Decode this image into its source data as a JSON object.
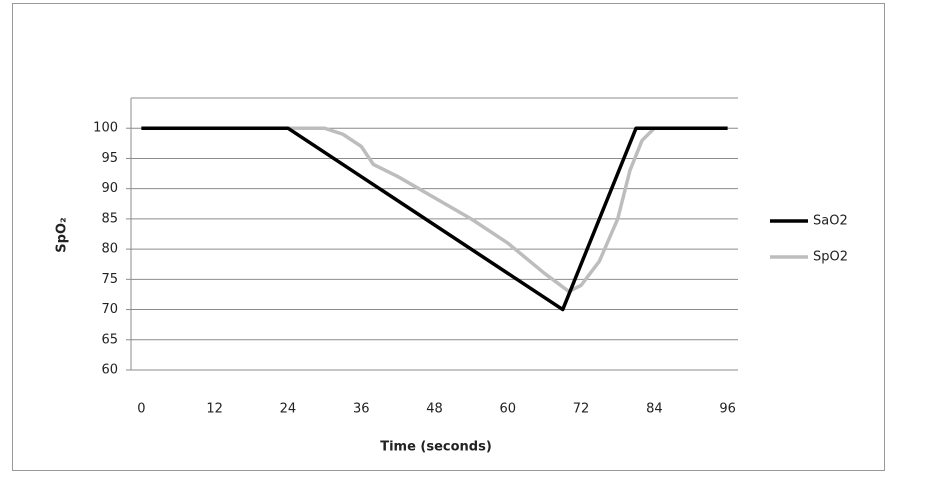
{
  "chart_data": {
    "type": "line",
    "x_label": "Time (seconds)",
    "y_label": "SpO₂",
    "xlim": [
      -1.7,
      97.7
    ],
    "xticks": [
      0,
      12,
      24,
      36,
      48,
      60,
      72,
      84,
      96
    ],
    "ylim": [
      60,
      105
    ],
    "yticks": [
      60,
      65,
      70,
      75,
      80,
      85,
      90,
      95,
      100
    ],
    "grid": true,
    "legend": "right",
    "series": [
      {
        "name": "SaO2",
        "color": "#000000",
        "x": [
          0,
          24,
          69,
          81,
          84,
          96
        ],
        "values": [
          100,
          100,
          70,
          100,
          100,
          100
        ]
      },
      {
        "name": "SpO2",
        "color": "#bdbdbd",
        "x": [
          0,
          30,
          33,
          36,
          38,
          42,
          48,
          54,
          60,
          66,
          70,
          72,
          75,
          78,
          80,
          82,
          84,
          96
        ],
        "values": [
          100,
          100,
          99,
          97,
          94,
          92,
          88.5,
          85,
          81,
          76,
          73,
          74,
          78,
          85,
          93,
          98,
          100,
          100
        ]
      }
    ]
  }
}
